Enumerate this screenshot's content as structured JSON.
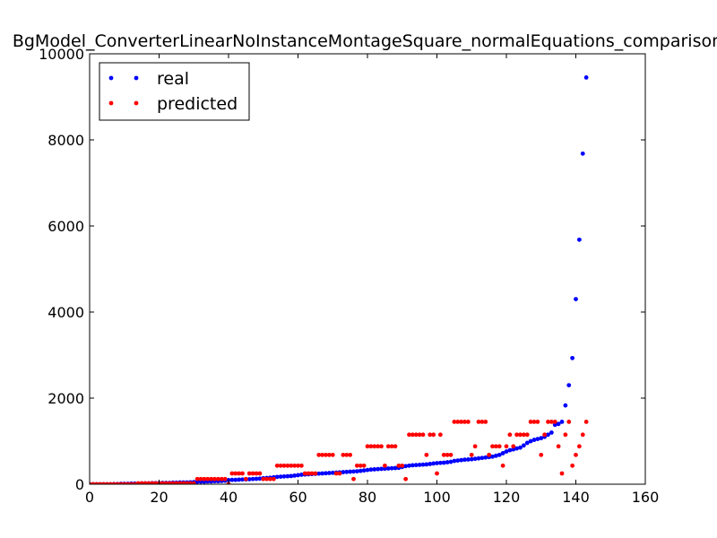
{
  "chart_data": {
    "type": "scatter",
    "title": "BgModel_ConverterLinearNoInstanceMontageSquare_normalEquations_comparison",
    "xlabel": "",
    "ylabel": "",
    "xlim": [
      0,
      160
    ],
    "ylim": [
      0,
      10000
    ],
    "xticks": [
      0,
      20,
      40,
      60,
      80,
      100,
      120,
      140,
      160
    ],
    "yticks": [
      0,
      2000,
      4000,
      6000,
      8000,
      10000
    ],
    "grid": false,
    "legend_position": "top-left",
    "colors": {
      "real": "#0000ff",
      "predicted": "#ff0000"
    },
    "series": [
      {
        "name": "real",
        "color": "#0000ff",
        "points": [
          [
            0,
            0
          ],
          [
            1,
            0
          ],
          [
            2,
            0
          ],
          [
            3,
            0
          ],
          [
            4,
            0
          ],
          [
            5,
            0
          ],
          [
            6,
            0
          ],
          [
            7,
            5
          ],
          [
            8,
            5
          ],
          [
            9,
            10
          ],
          [
            10,
            10
          ],
          [
            11,
            10
          ],
          [
            12,
            15
          ],
          [
            13,
            15
          ],
          [
            14,
            15
          ],
          [
            15,
            20
          ],
          [
            16,
            20
          ],
          [
            17,
            20
          ],
          [
            18,
            25
          ],
          [
            19,
            25
          ],
          [
            20,
            25
          ],
          [
            21,
            30
          ],
          [
            22,
            30
          ],
          [
            23,
            30
          ],
          [
            24,
            35
          ],
          [
            25,
            35
          ],
          [
            26,
            40
          ],
          [
            27,
            40
          ],
          [
            28,
            40
          ],
          [
            29,
            45
          ],
          [
            30,
            50
          ],
          [
            31,
            55
          ],
          [
            32,
            60
          ],
          [
            33,
            60
          ],
          [
            34,
            65
          ],
          [
            35,
            65
          ],
          [
            36,
            70
          ],
          [
            37,
            70
          ],
          [
            38,
            75
          ],
          [
            39,
            80
          ],
          [
            40,
            95
          ],
          [
            41,
            100
          ],
          [
            42,
            100
          ],
          [
            43,
            105
          ],
          [
            44,
            110
          ],
          [
            45,
            110
          ],
          [
            46,
            115
          ],
          [
            47,
            120
          ],
          [
            48,
            125
          ],
          [
            49,
            130
          ],
          [
            50,
            140
          ],
          [
            51,
            145
          ],
          [
            52,
            150
          ],
          [
            53,
            160
          ],
          [
            54,
            170
          ],
          [
            55,
            175
          ],
          [
            56,
            180
          ],
          [
            57,
            185
          ],
          [
            58,
            190
          ],
          [
            59,
            200
          ],
          [
            60,
            210
          ],
          [
            61,
            220
          ],
          [
            62,
            225
          ],
          [
            63,
            230
          ],
          [
            64,
            235
          ],
          [
            65,
            240
          ],
          [
            66,
            245
          ],
          [
            67,
            250
          ],
          [
            68,
            255
          ],
          [
            69,
            260
          ],
          [
            70,
            265
          ],
          [
            71,
            270
          ],
          [
            72,
            275
          ],
          [
            73,
            280
          ],
          [
            74,
            285
          ],
          [
            75,
            290
          ],
          [
            76,
            295
          ],
          [
            77,
            300
          ],
          [
            78,
            310
          ],
          [
            79,
            320
          ],
          [
            80,
            330
          ],
          [
            81,
            340
          ],
          [
            82,
            345
          ],
          [
            83,
            350
          ],
          [
            84,
            355
          ],
          [
            85,
            360
          ],
          [
            86,
            365
          ],
          [
            87,
            370
          ],
          [
            88,
            375
          ],
          [
            89,
            380
          ],
          [
            90,
            400
          ],
          [
            91,
            420
          ],
          [
            92,
            430
          ],
          [
            93,
            440
          ],
          [
            94,
            445
          ],
          [
            95,
            450
          ],
          [
            96,
            455
          ],
          [
            97,
            460
          ],
          [
            98,
            470
          ],
          [
            99,
            480
          ],
          [
            100,
            490
          ],
          [
            101,
            495
          ],
          [
            102,
            500
          ],
          [
            103,
            510
          ],
          [
            104,
            520
          ],
          [
            105,
            540
          ],
          [
            106,
            550
          ],
          [
            107,
            560
          ],
          [
            108,
            570
          ],
          [
            109,
            575
          ],
          [
            110,
            580
          ],
          [
            111,
            590
          ],
          [
            112,
            600
          ],
          [
            113,
            610
          ],
          [
            114,
            620
          ],
          [
            115,
            630
          ],
          [
            116,
            640
          ],
          [
            117,
            660
          ],
          [
            118,
            680
          ],
          [
            119,
            720
          ],
          [
            120,
            760
          ],
          [
            121,
            790
          ],
          [
            122,
            810
          ],
          [
            123,
            830
          ],
          [
            124,
            850
          ],
          [
            125,
            900
          ],
          [
            126,
            960
          ],
          [
            127,
            1000
          ],
          [
            128,
            1030
          ],
          [
            129,
            1050
          ],
          [
            130,
            1070
          ],
          [
            131,
            1100
          ],
          [
            132,
            1150
          ],
          [
            133,
            1200
          ],
          [
            134,
            1380
          ],
          [
            135,
            1400
          ],
          [
            136,
            1450
          ],
          [
            137,
            1830
          ],
          [
            138,
            2300
          ],
          [
            139,
            2930
          ],
          [
            140,
            4300
          ],
          [
            141,
            5680
          ],
          [
            142,
            7680
          ],
          [
            143,
            9450
          ]
        ]
      },
      {
        "name": "predicted",
        "color": "#ff0000",
        "points": [
          [
            0,
            0
          ],
          [
            1,
            0
          ],
          [
            2,
            0
          ],
          [
            3,
            0
          ],
          [
            4,
            0
          ],
          [
            5,
            0
          ],
          [
            6,
            0
          ],
          [
            7,
            0
          ],
          [
            8,
            0
          ],
          [
            9,
            0
          ],
          [
            10,
            0
          ],
          [
            11,
            0
          ],
          [
            12,
            0
          ],
          [
            13,
            0
          ],
          [
            14,
            20
          ],
          [
            15,
            20
          ],
          [
            16,
            20
          ],
          [
            17,
            20
          ],
          [
            18,
            20
          ],
          [
            19,
            20
          ],
          [
            20,
            20
          ],
          [
            21,
            20
          ],
          [
            22,
            20
          ],
          [
            23,
            20
          ],
          [
            24,
            20
          ],
          [
            25,
            20
          ],
          [
            26,
            20
          ],
          [
            27,
            20
          ],
          [
            28,
            20
          ],
          [
            29,
            20
          ],
          [
            30,
            20
          ],
          [
            31,
            120
          ],
          [
            32,
            120
          ],
          [
            33,
            120
          ],
          [
            34,
            120
          ],
          [
            35,
            120
          ],
          [
            36,
            120
          ],
          [
            37,
            120
          ],
          [
            38,
            120
          ],
          [
            39,
            120
          ],
          [
            40,
            0
          ],
          [
            41,
            250
          ],
          [
            42,
            250
          ],
          [
            43,
            250
          ],
          [
            44,
            250
          ],
          [
            45,
            120
          ],
          [
            46,
            250
          ],
          [
            47,
            250
          ],
          [
            48,
            250
          ],
          [
            49,
            250
          ],
          [
            50,
            120
          ],
          [
            51,
            120
          ],
          [
            52,
            120
          ],
          [
            53,
            120
          ],
          [
            54,
            430
          ],
          [
            55,
            430
          ],
          [
            56,
            430
          ],
          [
            57,
            430
          ],
          [
            58,
            430
          ],
          [
            59,
            430
          ],
          [
            60,
            430
          ],
          [
            61,
            430
          ],
          [
            62,
            250
          ],
          [
            63,
            250
          ],
          [
            64,
            250
          ],
          [
            65,
            250
          ],
          [
            66,
            680
          ],
          [
            67,
            680
          ],
          [
            68,
            680
          ],
          [
            69,
            680
          ],
          [
            70,
            680
          ],
          [
            71,
            250
          ],
          [
            72,
            250
          ],
          [
            73,
            680
          ],
          [
            74,
            680
          ],
          [
            75,
            680
          ],
          [
            76,
            120
          ],
          [
            77,
            430
          ],
          [
            78,
            430
          ],
          [
            79,
            430
          ],
          [
            80,
            880
          ],
          [
            81,
            880
          ],
          [
            82,
            880
          ],
          [
            83,
            880
          ],
          [
            84,
            880
          ],
          [
            85,
            430
          ],
          [
            86,
            880
          ],
          [
            87,
            880
          ],
          [
            88,
            880
          ],
          [
            89,
            430
          ],
          [
            90,
            430
          ],
          [
            91,
            120
          ],
          [
            92,
            1150
          ],
          [
            93,
            1150
          ],
          [
            94,
            1150
          ],
          [
            95,
            1150
          ],
          [
            96,
            1150
          ],
          [
            97,
            680
          ],
          [
            98,
            1150
          ],
          [
            99,
            1150
          ],
          [
            100,
            250
          ],
          [
            101,
            1150
          ],
          [
            102,
            680
          ],
          [
            103,
            680
          ],
          [
            104,
            680
          ],
          [
            105,
            1450
          ],
          [
            106,
            1450
          ],
          [
            107,
            1450
          ],
          [
            108,
            1450
          ],
          [
            109,
            1450
          ],
          [
            110,
            680
          ],
          [
            111,
            880
          ],
          [
            112,
            1450
          ],
          [
            113,
            1450
          ],
          [
            114,
            1450
          ],
          [
            115,
            680
          ],
          [
            116,
            880
          ],
          [
            117,
            880
          ],
          [
            118,
            880
          ],
          [
            119,
            430
          ],
          [
            120,
            880
          ],
          [
            121,
            1150
          ],
          [
            122,
            880
          ],
          [
            123,
            1150
          ],
          [
            124,
            1150
          ],
          [
            125,
            1150
          ],
          [
            126,
            1150
          ],
          [
            127,
            1450
          ],
          [
            128,
            1450
          ],
          [
            129,
            1450
          ],
          [
            130,
            680
          ],
          [
            131,
            1150
          ],
          [
            132,
            1450
          ],
          [
            133,
            1450
          ],
          [
            134,
            1450
          ],
          [
            135,
            880
          ],
          [
            136,
            250
          ],
          [
            137,
            1150
          ],
          [
            138,
            1450
          ],
          [
            139,
            430
          ],
          [
            140,
            680
          ],
          [
            141,
            880
          ],
          [
            142,
            1150
          ],
          [
            143,
            1450
          ]
        ]
      }
    ]
  }
}
